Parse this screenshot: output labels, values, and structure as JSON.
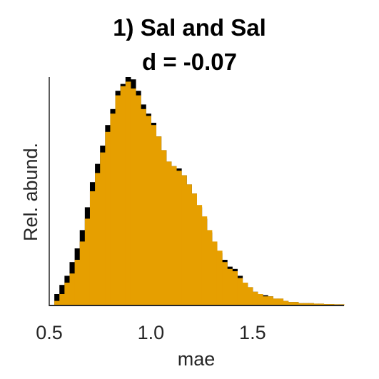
{
  "chart_data": {
    "type": "bar",
    "title": "1) Sal and Sal",
    "subtitle": "d = -0.07",
    "xlabel": "mae",
    "ylabel": "Rel. abund.",
    "xlim": [
      0.5,
      1.95
    ],
    "ylim": [
      0,
      1.0
    ],
    "xticks": [
      "0.5",
      "1.0",
      "1.5"
    ],
    "xtick_values": [
      0.5,
      1.0,
      1.5
    ],
    "bin_start": 0.5,
    "bin_width": 0.025,
    "series": [
      {
        "color": "#000000",
        "values": [
          0.0,
          0.05,
          0.09,
          0.13,
          0.19,
          0.25,
          0.33,
          0.43,
          0.54,
          0.62,
          0.7,
          0.79,
          0.86,
          0.94,
          0.97,
          1.0,
          0.99,
          0.94,
          0.88,
          0.84,
          0.8,
          0.74,
          0.68,
          0.63,
          0.61,
          0.6,
          0.57,
          0.53,
          0.49,
          0.43,
          0.38,
          0.32,
          0.27,
          0.23,
          0.2,
          0.17,
          0.16,
          0.13,
          0.1,
          0.08,
          0.06,
          0.05,
          0.045,
          0.04,
          0.03,
          0.03,
          0.02,
          0.015,
          0.015,
          0.01,
          0.01,
          0.01,
          0.008,
          0.008,
          0.006,
          0.006,
          0.005,
          0.005
        ]
      },
      {
        "color": "#E69F00",
        "values": [
          0.0,
          0.02,
          0.05,
          0.1,
          0.14,
          0.2,
          0.28,
          0.38,
          0.5,
          0.58,
          0.67,
          0.76,
          0.84,
          0.92,
          0.96,
          0.98,
          0.95,
          0.92,
          0.86,
          0.83,
          0.79,
          0.74,
          0.68,
          0.63,
          0.61,
          0.59,
          0.57,
          0.53,
          0.49,
          0.44,
          0.39,
          0.33,
          0.28,
          0.24,
          0.19,
          0.16,
          0.15,
          0.12,
          0.1,
          0.08,
          0.06,
          0.05,
          0.04,
          0.04,
          0.03,
          0.03,
          0.02,
          0.015,
          0.015,
          0.01,
          0.01,
          0.01,
          0.008,
          0.008,
          0.006,
          0.006,
          0.005,
          0.005
        ]
      }
    ],
    "grid": false,
    "legend": "none"
  }
}
